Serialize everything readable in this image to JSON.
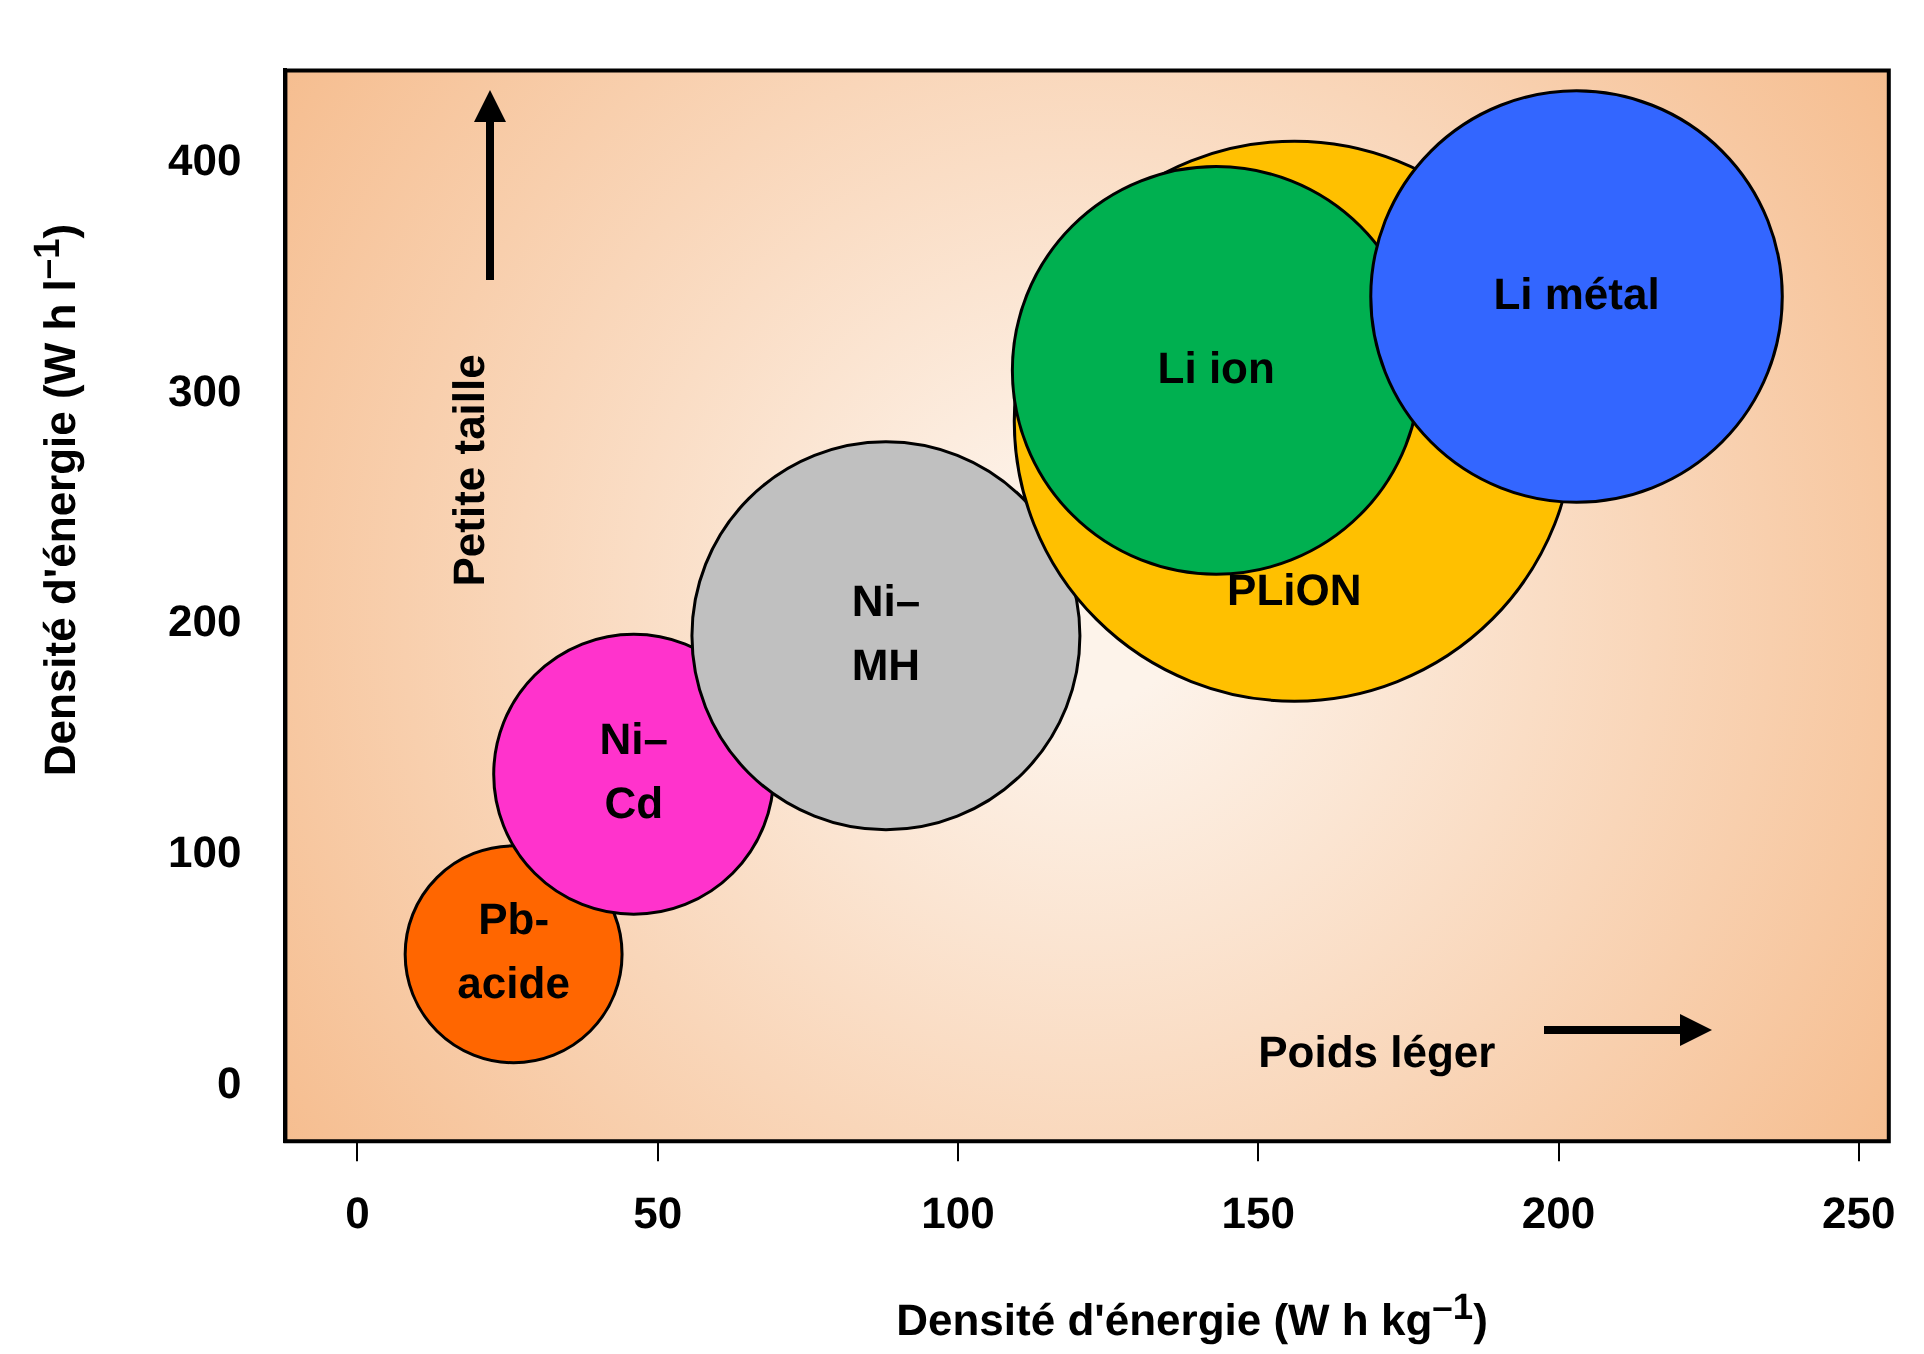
{
  "chart_data": {
    "type": "bubble",
    "xlabel": "Densité d'énergie (W h kg$^{–1}$)",
    "ylabel": "Densité d'énergie (W h l$^{–1}$)",
    "xlim": [
      -12,
      255
    ],
    "ylim": [
      -24,
      440
    ],
    "xticks": [
      0,
      50,
      100,
      150,
      200,
      250
    ],
    "yticks": [
      0,
      100,
      200,
      300,
      400
    ],
    "legend": false,
    "annotations": [
      "Petite taille",
      "Poids léger"
    ],
    "series": [
      {
        "name": "Pb-acide",
        "color": "#ff6600",
        "x": [
          26
        ],
        "values": [
          57
        ],
        "sizes": [
          0.15
        ]
      },
      {
        "name": "Ni–Cd",
        "color": "#ff33cc",
        "x": [
          46
        ],
        "values": [
          135
        ],
        "sizes": [
          0.25
        ]
      },
      {
        "name": "Ni–MH",
        "color": "#c0c0c0",
        "x": [
          88
        ],
        "values": [
          195
        ],
        "sizes": [
          0.48
        ]
      },
      {
        "name": "PLiON",
        "color": "#ffc000",
        "x": [
          156
        ],
        "values": [
          288
        ],
        "sizes": [
          1
        ]
      },
      {
        "name": "Li ion",
        "color": "#00b050",
        "x": [
          143
        ],
        "values": [
          310
        ],
        "sizes": [
          0.53
        ]
      },
      {
        "name": "Li métal",
        "color": "#3366ff",
        "x": [
          203
        ],
        "values": [
          342
        ],
        "sizes": [
          0.54
        ]
      }
    ]
  }
}
